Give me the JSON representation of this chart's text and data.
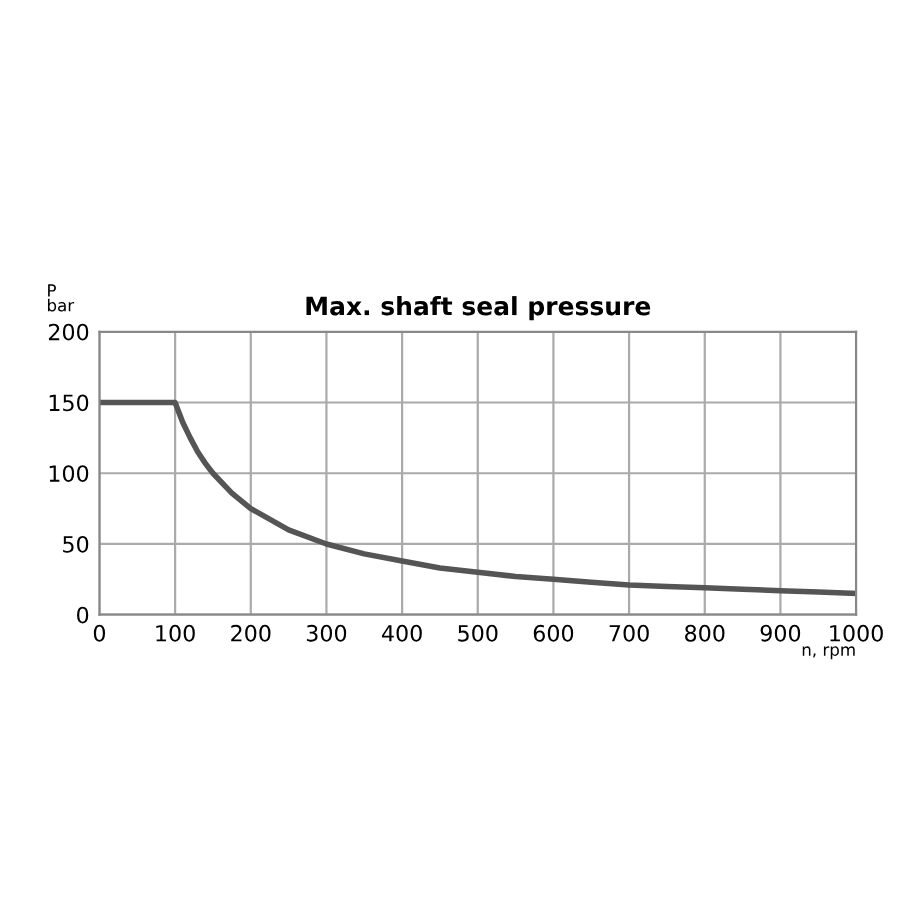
{
  "chart_data": {
    "type": "line",
    "title": "Max. shaft seal pressure",
    "xlabel": "n, rpm",
    "ylabel": "P\nbar",
    "x": [
      0,
      100,
      110,
      120,
      130,
      140,
      150,
      175,
      200,
      250,
      300,
      350,
      400,
      450,
      500,
      550,
      600,
      650,
      700,
      750,
      800,
      850,
      900,
      950,
      1000
    ],
    "series": [
      {
        "color": "#555555",
        "values": [
          150,
          150,
          136,
          125,
          115,
          107,
          100,
          86,
          75,
          60,
          50,
          43,
          38,
          33,
          30,
          27,
          25,
          23,
          21,
          20,
          19,
          18,
          17,
          16,
          15
        ]
      }
    ],
    "xlim": [
      0,
      1000
    ],
    "ylim": [
      0,
      200
    ],
    "xticks": [
      0,
      100,
      200,
      300,
      400,
      500,
      600,
      700,
      800,
      900,
      1000
    ],
    "yticks": [
      0,
      50,
      100,
      150,
      200
    ],
    "grid": true,
    "legend": false,
    "marker": "none",
    "line_style": "solid"
  }
}
